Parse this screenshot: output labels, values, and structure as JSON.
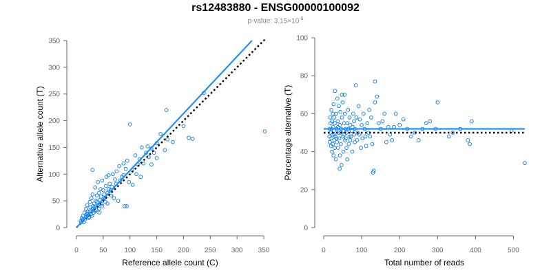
{
  "title": "rs12483880 - ENSG00000100092",
  "subtitle_prefix": "p-value: 3.15×10",
  "subtitle_exp": "-9",
  "colors": {
    "points": "#1c86ee",
    "fit_line": "#1e90ff",
    "reference_line": "#000000",
    "axis": "#666666"
  },
  "chart_data": [
    {
      "type": "scatter",
      "xlabel": "Reference allele count (C)",
      "ylabel": "Alternative allele count (T)",
      "xlim": [
        0,
        350
      ],
      "ylim": [
        0,
        350
      ],
      "xticks": [
        0,
        50,
        100,
        150,
        200,
        250,
        300,
        350
      ],
      "yticks": [
        0,
        50,
        100,
        150,
        200,
        250,
        300,
        350
      ],
      "fit_line": {
        "style": "solid",
        "from": [
          0,
          0
        ],
        "to": [
          328,
          350
        ]
      },
      "reference_line": {
        "style": "dotted",
        "from": [
          0,
          0
        ],
        "to": [
          352,
          352
        ]
      },
      "points": [
        [
          352,
          180
        ],
        [
          238,
          252
        ],
        [
          168,
          220
        ],
        [
          100,
          193
        ],
        [
          157,
          175
        ],
        [
          210,
          168
        ],
        [
          217,
          166
        ],
        [
          150,
          158
        ],
        [
          170,
          165
        ],
        [
          133,
          152
        ],
        [
          140,
          148
        ],
        [
          122,
          150
        ],
        [
          130,
          140
        ],
        [
          110,
          135
        ],
        [
          118,
          128
        ],
        [
          95,
          125
        ],
        [
          88,
          120
        ],
        [
          80,
          115
        ],
        [
          92,
          110
        ],
        [
          75,
          105
        ],
        [
          68,
          100
        ],
        [
          60,
          98
        ],
        [
          30,
          108
        ],
        [
          56,
          95
        ],
        [
          72,
          90
        ],
        [
          85,
          95
        ],
        [
          48,
          88
        ],
        [
          40,
          85
        ],
        [
          62,
          82
        ],
        [
          55,
          78
        ],
        [
          45,
          72
        ],
        [
          35,
          75
        ],
        [
          50,
          70
        ],
        [
          42,
          65
        ],
        [
          38,
          60
        ],
        [
          30,
          62
        ],
        [
          65,
          60
        ],
        [
          52,
          55
        ],
        [
          28,
          55
        ],
        [
          44,
          52
        ],
        [
          36,
          50
        ],
        [
          25,
          48
        ],
        [
          33,
          45
        ],
        [
          20,
          42
        ],
        [
          40,
          42
        ],
        [
          48,
          40
        ],
        [
          26,
          38
        ],
        [
          18,
          35
        ],
        [
          30,
          35
        ],
        [
          22,
          30
        ],
        [
          15,
          28
        ],
        [
          35,
          30
        ],
        [
          27,
          25
        ],
        [
          12,
          22
        ],
        [
          20,
          22
        ],
        [
          10,
          18
        ],
        [
          16,
          15
        ],
        [
          24,
          20
        ],
        [
          8,
          12
        ],
        [
          14,
          10
        ],
        [
          32,
          28
        ],
        [
          42,
          35
        ],
        [
          58,
          45
        ],
        [
          70,
          55
        ],
        [
          78,
          50
        ],
        [
          90,
          40
        ],
        [
          94,
          40
        ],
        [
          120,
          95
        ],
        [
          105,
          80
        ],
        [
          112,
          100
        ],
        [
          98,
          85
        ],
        [
          125,
          120
        ],
        [
          140,
          118
        ],
        [
          180,
          160
        ],
        [
          150,
          130
        ],
        [
          165,
          145
        ],
        [
          200,
          190
        ],
        [
          58,
          65
        ],
        [
          64,
          70
        ],
        [
          46,
          58
        ],
        [
          38,
          48
        ],
        [
          31,
          40
        ],
        [
          22,
          26
        ],
        [
          18,
          20
        ],
        [
          13,
          16
        ],
        [
          11,
          14
        ],
        [
          9,
          10
        ],
        [
          28,
          32
        ],
        [
          34,
          38
        ],
        [
          25,
          30
        ],
        [
          52,
          62
        ],
        [
          60,
          72
        ],
        [
          66,
          76
        ],
        [
          74,
          82
        ],
        [
          82,
          88
        ],
        [
          88,
          98
        ],
        [
          104,
          108
        ],
        [
          115,
          118
        ],
        [
          135,
          132
        ],
        [
          145,
          140
        ],
        [
          19,
          25
        ],
        [
          23,
          18
        ],
        [
          29,
          22
        ],
        [
          37,
          33
        ],
        [
          43,
          28
        ],
        [
          54,
          48
        ],
        [
          47,
          44
        ]
      ]
    },
    {
      "type": "scatter",
      "xlabel": "Total number of reads",
      "ylabel": "Percentage alternative (T)",
      "xlim": [
        0,
        530
      ],
      "ylim": [
        0,
        100
      ],
      "xticks": [
        0,
        100,
        200,
        300,
        400,
        500
      ],
      "yticks": [
        0,
        20,
        40,
        60,
        80,
        100
      ],
      "fit_line": {
        "style": "solid",
        "from": [
          0,
          52
        ],
        "to": [
          530,
          52
        ]
      },
      "reference_line": {
        "style": "dotted",
        "from": [
          0,
          50
        ],
        "to": [
          530,
          50
        ]
      },
      "points": [
        [
          530,
          34
        ],
        [
          495,
          51
        ],
        [
          390,
          56
        ],
        [
          385,
          44
        ],
        [
          380,
          46
        ],
        [
          360,
          52
        ],
        [
          340,
          50
        ],
        [
          330,
          48
        ],
        [
          300,
          66
        ],
        [
          295,
          52
        ],
        [
          280,
          56
        ],
        [
          270,
          55
        ],
        [
          250,
          46
        ],
        [
          230,
          48
        ],
        [
          220,
          52
        ],
        [
          210,
          57
        ],
        [
          200,
          54
        ],
        [
          190,
          60
        ],
        [
          180,
          46
        ],
        [
          175,
          49
        ],
        [
          170,
          53
        ],
        [
          165,
          45
        ],
        [
          160,
          60
        ],
        [
          155,
          56
        ],
        [
          150,
          52
        ],
        [
          140,
          69
        ],
        [
          135,
          77
        ],
        [
          135,
          66
        ],
        [
          132,
          30
        ],
        [
          130,
          29
        ],
        [
          128,
          44
        ],
        [
          125,
          58
        ],
        [
          120,
          62
        ],
        [
          118,
          50
        ],
        [
          115,
          55
        ],
        [
          110,
          48
        ],
        [
          105,
          60
        ],
        [
          100,
          54
        ],
        [
          98,
          42
        ],
        [
          95,
          57
        ],
        [
          92,
          64
        ],
        [
          90,
          50
        ],
        [
          88,
          46
        ],
        [
          85,
          75
        ],
        [
          82,
          52
        ],
        [
          80,
          56
        ],
        [
          78,
          60
        ],
        [
          75,
          40
        ],
        [
          72,
          48
        ],
        [
          70,
          54
        ],
        [
          68,
          58
        ],
        [
          66,
          44
        ],
        [
          64,
          62
        ],
        [
          62,
          36
        ],
        [
          60,
          50
        ],
        [
          58,
          52
        ],
        [
          56,
          46
        ],
        [
          55,
          70
        ],
        [
          54,
          55
        ],
        [
          52,
          40
        ],
        [
          50,
          66
        ],
        [
          50,
          48
        ],
        [
          48,
          58
        ],
        [
          47,
          33
        ],
        [
          46,
          52
        ],
        [
          45,
          44
        ],
        [
          44,
          61
        ],
        [
          43,
          38
        ],
        [
          42,
          54
        ],
        [
          41,
          47
        ],
        [
          40,
          64
        ],
        [
          39,
          50
        ],
        [
          38,
          42
        ],
        [
          37,
          56
        ],
        [
          36,
          68
        ],
        [
          35,
          45
        ],
        [
          34,
          52
        ],
        [
          33,
          60
        ],
        [
          32,
          36
        ],
        [
          31,
          48
        ],
        [
          30,
          55
        ],
        [
          30,
          72
        ],
        [
          29,
          42
        ],
        [
          28,
          58
        ],
        [
          28,
          46
        ],
        [
          27,
          51
        ],
        [
          26,
          38
        ],
        [
          26,
          65
        ],
        [
          25,
          53
        ],
        [
          24,
          44
        ],
        [
          24,
          60
        ],
        [
          23,
          49
        ],
        [
          22,
          56
        ],
        [
          22,
          40
        ],
        [
          21,
          52
        ],
        [
          20,
          47
        ],
        [
          20,
          62
        ],
        [
          19,
          43
        ],
        [
          18,
          55
        ],
        [
          18,
          50
        ],
        [
          17,
          58
        ],
        [
          16,
          45
        ],
        [
          16,
          52
        ],
        [
          15,
          48
        ],
        [
          42,
          31
        ],
        [
          48,
          70
        ],
        [
          56,
          60
        ],
        [
          60,
          42
        ],
        [
          65,
          52
        ],
        [
          70,
          46
        ],
        [
          76,
          53
        ],
        [
          82,
          45
        ],
        [
          86,
          58
        ],
        [
          94,
          49
        ],
        [
          102,
          47
        ],
        [
          108,
          52
        ],
        [
          112,
          43
        ],
        [
          122,
          48
        ],
        [
          145,
          55
        ],
        [
          185,
          53
        ],
        [
          240,
          50
        ],
        [
          260,
          52
        ],
        [
          54,
          49
        ],
        [
          38,
          53
        ],
        [
          34,
          47
        ],
        [
          44,
          50
        ],
        [
          52,
          51
        ],
        [
          28,
          49
        ],
        [
          62,
          55
        ],
        [
          68,
          48
        ],
        [
          74,
          51
        ],
        [
          80,
          49
        ],
        [
          58,
          47
        ]
      ]
    }
  ]
}
